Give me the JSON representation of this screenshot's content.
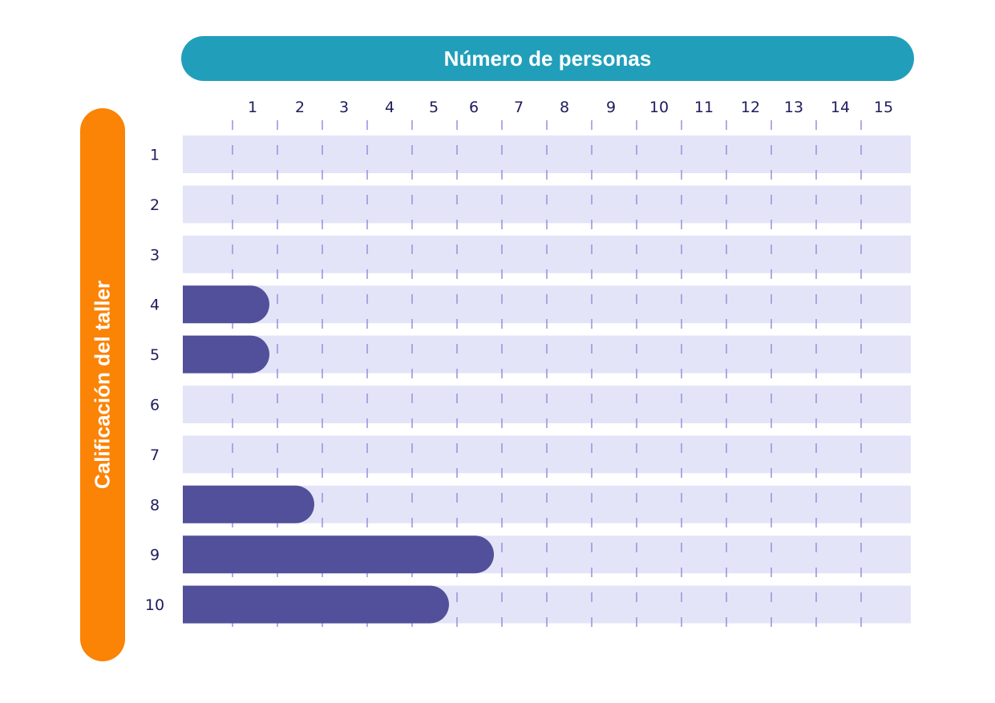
{
  "colors": {
    "x_title_bg": "#219fba",
    "y_title_bg": "#fb8305",
    "row_bg": "#e4e4f8",
    "bar": "#52509a",
    "tick": "#9a97e0",
    "label": "#1f1c5c"
  },
  "chart_data": {
    "type": "bar",
    "orientation": "horizontal",
    "xlabel": "Número de personas",
    "ylabel": "Calificación del taller",
    "xticks": [
      "1",
      "2",
      "3",
      "4",
      "5",
      "6",
      "7",
      "8",
      "9",
      "10",
      "11",
      "12",
      "13",
      "14",
      "15"
    ],
    "xlim": [
      0,
      16
    ],
    "categories": [
      "1",
      "2",
      "3",
      "4",
      "5",
      "6",
      "7",
      "8",
      "9",
      "10"
    ],
    "values": [
      0,
      0,
      0,
      2,
      2,
      0,
      0,
      3,
      7,
      6
    ],
    "grid": true
  }
}
